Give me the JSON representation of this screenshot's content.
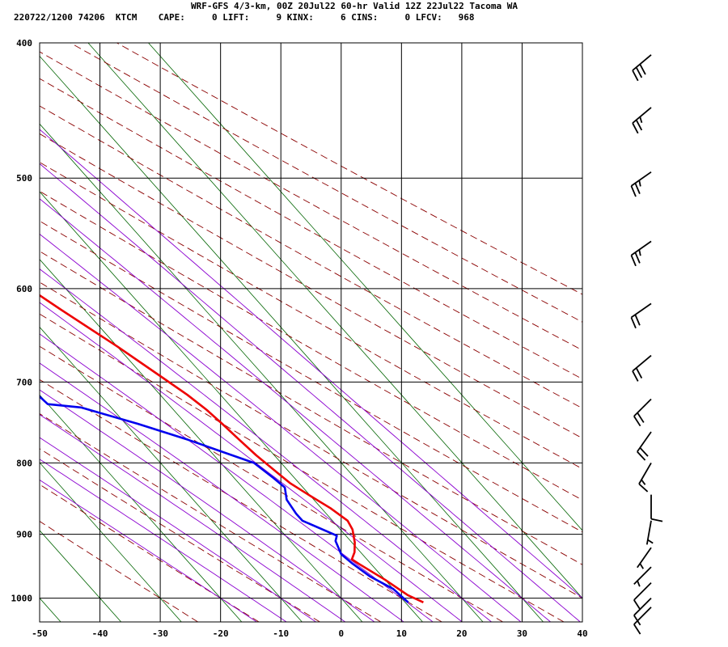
{
  "header": {
    "title": "WRF-GFS 4/3-km, 00Z 20Jul22 60-hr Valid 12Z 22Jul22 Tacoma WA",
    "info_line": "220722/1200 74206  KTCM    CAPE:     0 LIFT:     9 KINX:     6 CINS:     0 LFCV:   968"
  },
  "chart_data": {
    "type": "line",
    "title": "WRF-GFS 4/3-km, 00Z 20Jul22 60-hr Valid 12Z 22Jul22 Tacoma WA",
    "xlabel": "",
    "ylabel": "",
    "x_ticks": [
      -50,
      -40,
      -30,
      -20,
      -10,
      0,
      10,
      20,
      30,
      40
    ],
    "y_ticks": [
      400,
      500,
      600,
      700,
      800,
      900,
      1000
    ],
    "xlim": [
      -50,
      40
    ],
    "ylim": [
      1040,
      400
    ],
    "y_scale": "log",
    "grid": true,
    "colors": {
      "temperature": "#ee0000",
      "dewpoint": "#0000ee",
      "isotherm": "#006400",
      "dry_adiabat": "#8b0000",
      "moist_adiabat": "#8b00d0"
    },
    "series": [
      {
        "key": "temperature",
        "points": [
          [
            13,
            1007
          ],
          [
            11.5,
            995
          ],
          [
            10,
            970
          ],
          [
            8,
            945
          ],
          [
            7.5,
            938
          ],
          [
            9,
            927
          ],
          [
            10.5,
            912
          ],
          [
            12,
            893
          ],
          [
            12.5,
            880
          ],
          [
            11.5,
            862
          ],
          [
            10,
            845
          ],
          [
            8.5,
            827
          ],
          [
            8,
            815
          ],
          [
            7,
            790
          ],
          [
            6.5,
            770
          ],
          [
            6,
            750
          ],
          [
            5.5,
            733
          ],
          [
            4.5,
            715
          ],
          [
            3,
            696
          ],
          [
            0,
            660
          ],
          [
            -4,
            620
          ],
          [
            -8,
            580
          ],
          [
            -13,
            537
          ],
          [
            -19,
            494
          ],
          [
            -26,
            450
          ],
          [
            -31.5,
            416
          ]
        ]
      },
      {
        "key": "dewpoint",
        "points": [
          [
            10.5,
            1007
          ],
          [
            10,
            985
          ],
          [
            8,
            965
          ],
          [
            7,
            945
          ],
          [
            6.5,
            930
          ],
          [
            7.5,
            910
          ],
          [
            8.5,
            902
          ],
          [
            5,
            880
          ],
          [
            5,
            870
          ],
          [
            5.5,
            850
          ],
          [
            7,
            833
          ],
          [
            6.5,
            820
          ],
          [
            5.5,
            800
          ],
          [
            -2,
            770
          ],
          [
            -8,
            750
          ],
          [
            -15,
            730
          ],
          [
            -20,
            726
          ],
          [
            -21,
            690
          ],
          [
            -21.5,
            670
          ],
          [
            -21.5,
            640
          ],
          [
            -22.5,
            620
          ],
          [
            -25,
            590
          ],
          [
            -28,
            550
          ],
          [
            -32,
            510
          ],
          [
            -35,
            480
          ],
          [
            -40,
            445
          ],
          [
            -45.5,
            412
          ]
        ]
      }
    ],
    "wind_barbs": [
      {
        "p": 408,
        "dir": 230,
        "spd": 30
      },
      {
        "p": 445,
        "dir": 230,
        "spd": 25
      },
      {
        "p": 495,
        "dir": 235,
        "spd": 25
      },
      {
        "p": 555,
        "dir": 235,
        "spd": 25
      },
      {
        "p": 615,
        "dir": 235,
        "spd": 20
      },
      {
        "p": 670,
        "dir": 230,
        "spd": 20
      },
      {
        "p": 720,
        "dir": 225,
        "spd": 20
      },
      {
        "p": 760,
        "dir": 215,
        "spd": 20
      },
      {
        "p": 800,
        "dir": 210,
        "spd": 15
      },
      {
        "p": 843,
        "dir": 180,
        "spd": 10
      },
      {
        "p": 880,
        "dir": 190,
        "spd": 5
      },
      {
        "p": 920,
        "dir": 215,
        "spd": 5
      },
      {
        "p": 950,
        "dir": 225,
        "spd": 5
      },
      {
        "p": 975,
        "dir": 225,
        "spd": 10
      },
      {
        "p": 1000,
        "dir": 225,
        "spd": 10
      },
      {
        "p": 1015,
        "dir": 225,
        "spd": 10
      }
    ]
  }
}
